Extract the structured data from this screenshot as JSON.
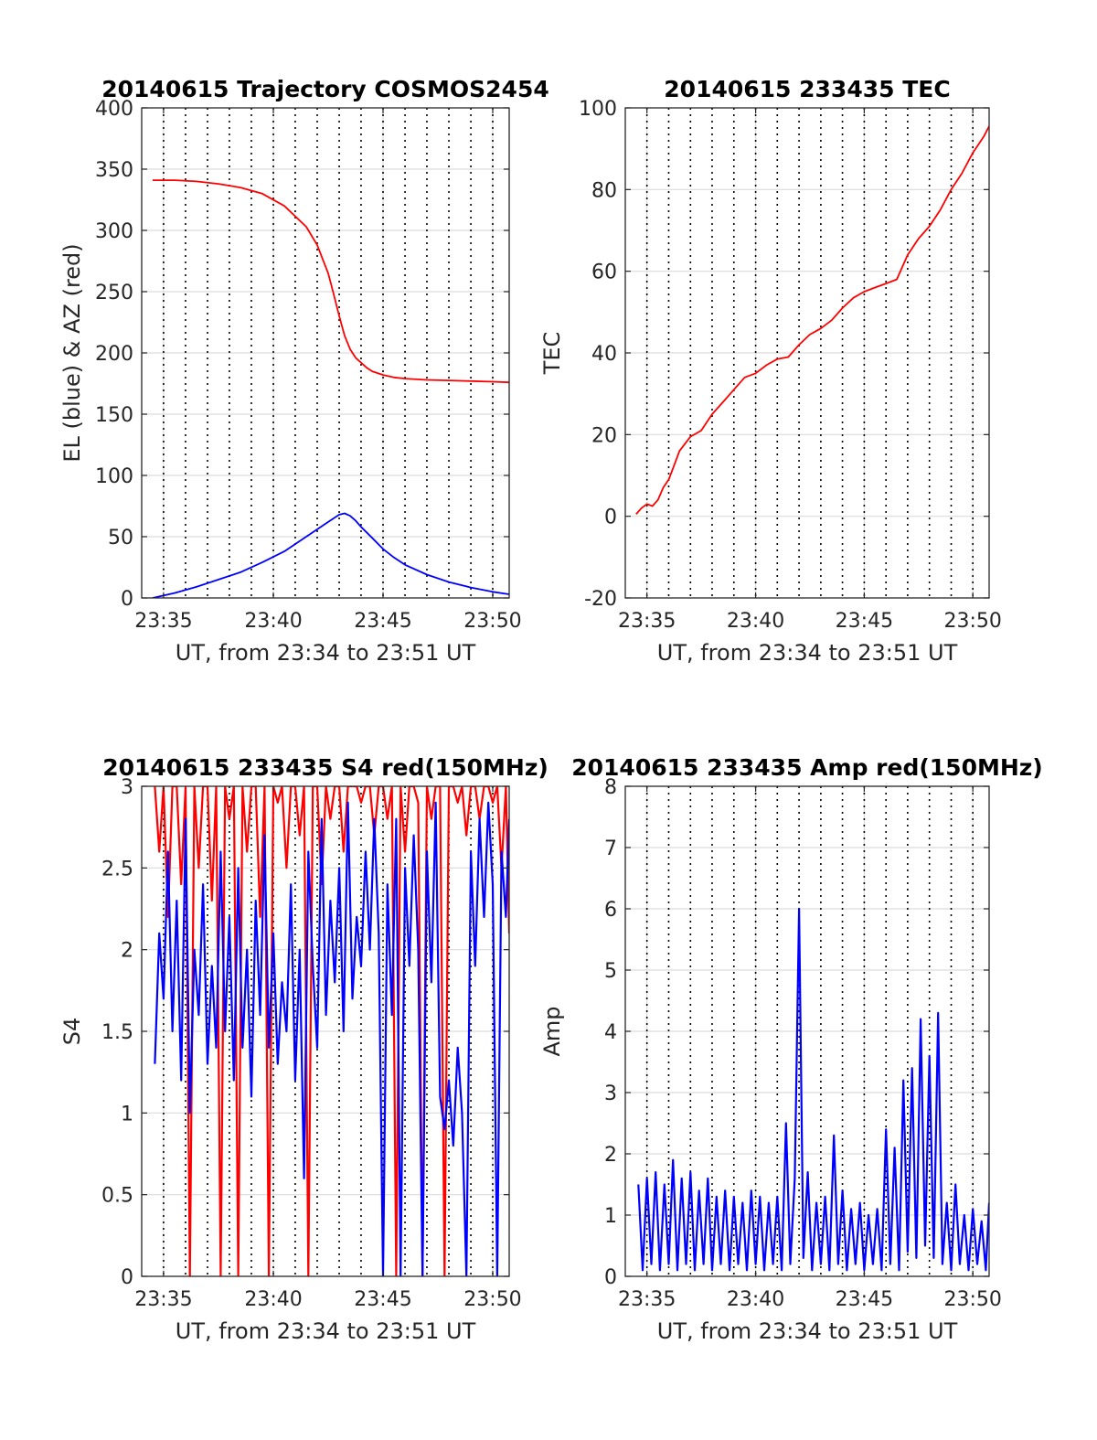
{
  "chart_data": [
    {
      "id": "trajectory",
      "type": "line",
      "title": "20140615 Trajectory COSMOS2454",
      "xlabel": "UT, from 23:34 to 23:51 UT",
      "ylabel": "EL (blue) & AZ (red)",
      "xlim": [
        23.5667,
        23.8458
      ],
      "ylim": [
        0,
        400
      ],
      "xticks": [
        23.5833,
        23.6667,
        23.75,
        23.8333
      ],
      "xticklabels": [
        "23:35",
        "23:40",
        "23:45",
        "23:50"
      ],
      "yticks": [
        0,
        50,
        100,
        150,
        200,
        250,
        300,
        350,
        400
      ],
      "yticklabels": [
        "0",
        "50",
        "100",
        "150",
        "200",
        "250",
        "300",
        "350",
        "400"
      ],
      "minute_lines": [
        23.5833,
        23.6,
        23.6167,
        23.6333,
        23.65,
        23.6667,
        23.6833,
        23.7,
        23.7167,
        23.7333,
        23.75,
        23.7667,
        23.7833,
        23.8,
        23.8167,
        23.8333
      ],
      "grid": true,
      "series": [
        {
          "color": "#ff0000",
          "x": [
            23.575,
            23.5917,
            23.6083,
            23.625,
            23.6417,
            23.6583,
            23.675,
            23.6917,
            23.7,
            23.7083,
            23.7125,
            23.7167,
            23.7208,
            23.725,
            23.7292,
            23.7333,
            23.7375,
            23.7417,
            23.75,
            23.7583,
            23.7667,
            23.7833,
            23.8,
            23.8167,
            23.8333,
            23.8458
          ],
          "y": [
            341,
            341,
            340,
            338,
            335,
            330,
            320,
            303,
            288,
            265,
            248,
            230,
            214,
            203,
            196,
            192,
            188,
            185,
            182,
            180,
            179,
            178,
            177.5,
            177,
            176.5,
            176
          ]
        },
        {
          "color": "#0000ff",
          "x": [
            23.575,
            23.5917,
            23.6083,
            23.625,
            23.6417,
            23.6583,
            23.675,
            23.6917,
            23.7083,
            23.7167,
            23.7208,
            23.725,
            23.7292,
            23.7333,
            23.7417,
            23.75,
            23.7583,
            23.7667,
            23.7833,
            23.8,
            23.8167,
            23.8333,
            23.8458
          ],
          "y": [
            0,
            4,
            9,
            15,
            21,
            29,
            38,
            50,
            62,
            68,
            69,
            67,
            63,
            58,
            49,
            40,
            33,
            27,
            19,
            13,
            8.5,
            5,
            3
          ]
        }
      ]
    },
    {
      "id": "tec",
      "type": "line",
      "title": "20140615 233435 TEC",
      "xlabel": "UT, from 23:34 to 23:51 UT",
      "ylabel": "TEC",
      "xlim": [
        23.5667,
        23.8458
      ],
      "ylim": [
        -20,
        100
      ],
      "xticks": [
        23.5833,
        23.6667,
        23.75,
        23.8333
      ],
      "xticklabels": [
        "23:35",
        "23:40",
        "23:45",
        "23:50"
      ],
      "yticks": [
        -20,
        0,
        20,
        40,
        60,
        80,
        100
      ],
      "yticklabels": [
        "-20",
        "0",
        "20",
        "40",
        "60",
        "80",
        "100"
      ],
      "minute_lines": [
        23.5833,
        23.6,
        23.6167,
        23.6333,
        23.65,
        23.6667,
        23.6833,
        23.7,
        23.7167,
        23.7333,
        23.75,
        23.7667,
        23.7833,
        23.8,
        23.8167,
        23.8333
      ],
      "grid": true,
      "series": [
        {
          "color": "#ff0000",
          "x": [
            23.575,
            23.5792,
            23.5833,
            23.5875,
            23.5917,
            23.5958,
            23.6,
            23.6042,
            23.6083,
            23.6167,
            23.625,
            23.6333,
            23.6417,
            23.65,
            23.6583,
            23.6667,
            23.675,
            23.6833,
            23.6917,
            23.7,
            23.7083,
            23.7167,
            23.725,
            23.7333,
            23.7417,
            23.75,
            23.7583,
            23.7667,
            23.775,
            23.7833,
            23.7917,
            23.8,
            23.8083,
            23.8167,
            23.825,
            23.8333,
            23.8417,
            23.8458
          ],
          "y": [
            0.5,
            2,
            3,
            2.5,
            4,
            7,
            9,
            12.5,
            16,
            19.5,
            21,
            25,
            28,
            31,
            34,
            35,
            37,
            38.5,
            39,
            42,
            44.5,
            46,
            48,
            51,
            53.5,
            55,
            56,
            57,
            58,
            64,
            68,
            71,
            75,
            80,
            84,
            89,
            93,
            95.5
          ]
        }
      ]
    },
    {
      "id": "s4",
      "type": "line",
      "title": "20140615 233435 S4 red(150MHz)",
      "xlabel": "UT, from 23:34 to 23:51 UT",
      "ylabel": "S4",
      "xlim": [
        23.5667,
        23.8458
      ],
      "ylim": [
        0,
        3
      ],
      "xticks": [
        23.5833,
        23.6667,
        23.75,
        23.8333
      ],
      "xticklabels": [
        "23:35",
        "23:40",
        "23:45",
        "23:50"
      ],
      "yticks": [
        0,
        0.5,
        1,
        1.5,
        2,
        2.5,
        3
      ],
      "yticklabels": [
        "0",
        "0.5",
        "1",
        "1.5",
        "2",
        "2.5",
        "3"
      ],
      "minute_lines": [
        23.5833,
        23.6,
        23.6167,
        23.6333,
        23.65,
        23.6667,
        23.6833,
        23.7,
        23.7167,
        23.7333,
        23.75,
        23.7667,
        23.7833,
        23.8,
        23.8167,
        23.8333
      ],
      "grid": true,
      "series": [
        {
          "color": "#ff0000",
          "x": [
            23.5767,
            23.58,
            23.5833,
            23.5867,
            23.59,
            23.5933,
            23.5967,
            23.6,
            23.6033,
            23.6067,
            23.61,
            23.6133,
            23.6167,
            23.62,
            23.6233,
            23.6267,
            23.63,
            23.6333,
            23.6367,
            23.64,
            23.6433,
            23.6467,
            23.65,
            23.6533,
            23.6567,
            23.66,
            23.6633,
            23.6667,
            23.67,
            23.6733,
            23.6767,
            23.68,
            23.6833,
            23.6867,
            23.69,
            23.6933,
            23.6967,
            23.7,
            23.7033,
            23.7067,
            23.71,
            23.7133,
            23.7167,
            23.72,
            23.7233,
            23.7267,
            23.73,
            23.7333,
            23.7367,
            23.74,
            23.7433,
            23.7467,
            23.75,
            23.7533,
            23.7567,
            23.76,
            23.7633,
            23.7667,
            23.77,
            23.7733,
            23.7767,
            23.78,
            23.7833,
            23.7867,
            23.79,
            23.7933,
            23.7967,
            23.8,
            23.8033,
            23.8067,
            23.81,
            23.8133,
            23.8167,
            23.82,
            23.8233,
            23.8267,
            23.83,
            23.8333,
            23.8367,
            23.84,
            23.8433,
            23.8458
          ],
          "y": [
            3,
            2.6,
            3,
            2.2,
            3,
            3,
            2.4,
            3,
            0,
            3,
            2.5,
            3,
            3,
            2.3,
            3,
            0,
            3,
            2.8,
            3,
            0,
            3,
            2.6,
            3,
            3,
            2.2,
            3,
            0,
            3,
            2.9,
            3,
            2.5,
            3,
            3,
            2.7,
            3,
            0,
            3,
            3,
            2.4,
            3,
            2.8,
            3,
            3,
            2.6,
            3,
            3,
            3,
            2.9,
            3,
            3,
            2.7,
            3,
            3,
            2.8,
            3,
            0,
            3,
            2.6,
            3,
            3,
            2.9,
            0,
            3,
            2.8,
            3,
            3,
            0,
            3,
            3,
            2.9,
            3,
            2.7,
            3,
            3,
            2.8,
            3,
            3,
            2.9,
            3,
            2.5,
            3,
            2.1
          ]
        },
        {
          "color": "#0000ff",
          "x": [
            23.5767,
            23.58,
            23.5833,
            23.5867,
            23.59,
            23.5933,
            23.5967,
            23.6,
            23.6033,
            23.6067,
            23.61,
            23.6133,
            23.6167,
            23.62,
            23.6233,
            23.6267,
            23.63,
            23.6333,
            23.6367,
            23.64,
            23.6433,
            23.6467,
            23.65,
            23.6533,
            23.6567,
            23.66,
            23.6633,
            23.6667,
            23.67,
            23.6733,
            23.6767,
            23.68,
            23.6833,
            23.6867,
            23.69,
            23.6933,
            23.6967,
            23.7,
            23.7033,
            23.7067,
            23.71,
            23.7133,
            23.7167,
            23.72,
            23.7233,
            23.7267,
            23.73,
            23.7333,
            23.7367,
            23.74,
            23.7433,
            23.7467,
            23.75,
            23.7533,
            23.7567,
            23.76,
            23.7633,
            23.7667,
            23.77,
            23.7733,
            23.7767,
            23.78,
            23.7833,
            23.7867,
            23.79,
            23.7933,
            23.7967,
            23.8,
            23.8033,
            23.8067,
            23.81,
            23.8133,
            23.8167,
            23.82,
            23.8233,
            23.8267,
            23.83,
            23.8333,
            23.8367,
            23.84,
            23.8433,
            23.8458
          ],
          "y": [
            1.3,
            2.1,
            1.7,
            2.6,
            1.5,
            2.3,
            1.2,
            2.8,
            1.0,
            2.0,
            1.6,
            2.4,
            1.3,
            1.9,
            1.4,
            2.6,
            1.5,
            2.2,
            1.2,
            2.5,
            1.4,
            2.0,
            1.1,
            2.3,
            1.6,
            2.7,
            1.4,
            2.1,
            1.3,
            1.8,
            1.5,
            2.4,
            1.2,
            2.0,
            0.6,
            2.6,
            1.9,
            1.4,
            2.8,
            1.6,
            2.3,
            1.8,
            2.5,
            1.5,
            2.9,
            1.7,
            2.2,
            1.9,
            2.6,
            2.0,
            2.8,
            2.1,
            0,
            2.4,
            1.6,
            2.8,
            0,
            2.5,
            1.9,
            2.7,
            2.0,
            0,
            2.6,
            1.8,
            2.9,
            1.1,
            0.9,
            1.2,
            0.8,
            1.4,
            1.0,
            0,
            2.6,
            1.9,
            2.8,
            2.2,
            2.9,
            2.4,
            0,
            2.6,
            2.2,
            2.8
          ]
        }
      ]
    },
    {
      "id": "amp",
      "type": "line",
      "title": "20140615 233435 Amp red(150MHz)",
      "xlabel": "UT, from 23:34 to 23:51 UT",
      "ylabel": "Amp",
      "xlim": [
        23.5667,
        23.8458
      ],
      "ylim": [
        0,
        8
      ],
      "xticks": [
        23.5833,
        23.6667,
        23.75,
        23.8333
      ],
      "xticklabels": [
        "23:35",
        "23:40",
        "23:45",
        "23:50"
      ],
      "yticks": [
        0,
        1,
        2,
        3,
        4,
        5,
        6,
        7,
        8
      ],
      "yticklabels": [
        "0",
        "1",
        "2",
        "3",
        "4",
        "5",
        "6",
        "7",
        "8"
      ],
      "minute_lines": [
        23.5833,
        23.6,
        23.6167,
        23.6333,
        23.65,
        23.6667,
        23.6833,
        23.7,
        23.7167,
        23.7333,
        23.75,
        23.7667,
        23.7833,
        23.8,
        23.8167,
        23.8333
      ],
      "grid": true,
      "series": [
        {
          "color": "#0000ff",
          "x": [
            23.5767,
            23.58,
            23.5833,
            23.5867,
            23.59,
            23.5933,
            23.5967,
            23.6,
            23.6033,
            23.6067,
            23.61,
            23.6133,
            23.6167,
            23.62,
            23.6233,
            23.6267,
            23.63,
            23.6333,
            23.6367,
            23.64,
            23.6433,
            23.6467,
            23.65,
            23.6533,
            23.6567,
            23.66,
            23.6633,
            23.6667,
            23.67,
            23.6733,
            23.6767,
            23.68,
            23.6833,
            23.6867,
            23.69,
            23.6933,
            23.6967,
            23.7,
            23.7033,
            23.7067,
            23.71,
            23.7133,
            23.7167,
            23.72,
            23.7233,
            23.7267,
            23.73,
            23.7333,
            23.7367,
            23.74,
            23.7433,
            23.7467,
            23.75,
            23.7533,
            23.7567,
            23.76,
            23.7633,
            23.7667,
            23.77,
            23.7733,
            23.7767,
            23.78,
            23.7833,
            23.7867,
            23.79,
            23.7933,
            23.7967,
            23.8,
            23.8033,
            23.8067,
            23.81,
            23.8133,
            23.8167,
            23.82,
            23.8233,
            23.8267,
            23.83,
            23.8333,
            23.8367,
            23.84,
            23.8433,
            23.8458
          ],
          "y": [
            1.5,
            0.1,
            1.6,
            0.2,
            1.7,
            0.1,
            1.5,
            0.2,
            1.9,
            0.1,
            1.6,
            0.2,
            1.7,
            0.1,
            1.4,
            0.2,
            1.6,
            0.1,
            1.3,
            0.2,
            1.4,
            0.1,
            1.3,
            0.2,
            1.2,
            0.1,
            1.4,
            0.2,
            1.3,
            0.1,
            1.2,
            0.2,
            1.3,
            0.1,
            2.5,
            0.2,
            1.6,
            6.0,
            0.3,
            1.7,
            0.1,
            1.2,
            0.2,
            1.3,
            0.1,
            2.3,
            0.2,
            1.4,
            0.1,
            1.1,
            0.2,
            1.2,
            0.1,
            1.0,
            0.2,
            1.1,
            0.1,
            2.4,
            0.2,
            2.1,
            0.1,
            3.2,
            0.4,
            3.4,
            0.3,
            4.2,
            0.5,
            3.6,
            0.3,
            4.3,
            0.2,
            1.2,
            0.1,
            1.5,
            0.2,
            1.0,
            0.1,
            1.1,
            0.2,
            0.9,
            0.1,
            1.2
          ]
        }
      ]
    }
  ]
}
